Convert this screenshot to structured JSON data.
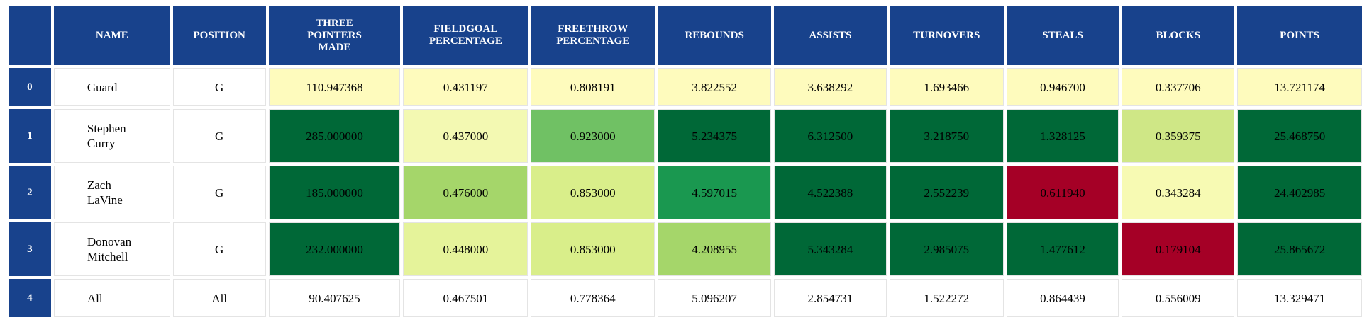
{
  "table": {
    "headers": [
      "",
      "NAME",
      "POSITION",
      "THREE POINTERS MADE",
      "FIELDGOAL PERCENTAGE",
      "FREETHROW PERCENTAGE",
      "REBOUNDS",
      "ASSISTS",
      "TURNOVERS",
      "STEALS",
      "BLOCKS",
      "POINTS"
    ],
    "rows": [
      {
        "index": "0",
        "cells": [
          "Guard",
          "G",
          "110.947368",
          "0.431197",
          "0.808191",
          "3.822552",
          "3.638292",
          "1.693466",
          "0.946700",
          "0.337706",
          "13.721174"
        ],
        "colors": [
          "#ffffff",
          "#ffffff",
          "#fefbbd",
          "#fefbbd",
          "#fefbbd",
          "#fefbbd",
          "#fefbbd",
          "#fefbbd",
          "#fefbbd",
          "#fefbbd",
          "#fefbbd"
        ]
      },
      {
        "index": "1",
        "cells": [
          "Stephen Curry",
          "G",
          "285.000000",
          "0.437000",
          "0.923000",
          "5.234375",
          "6.312500",
          "3.218750",
          "1.328125",
          "0.359375",
          "25.468750"
        ],
        "colors": [
          "#ffffff",
          "#ffffff",
          "#006837",
          "#f3f9b2",
          "#70c164",
          "#006837",
          "#006837",
          "#006837",
          "#006837",
          "#cfe786",
          "#006837"
        ]
      },
      {
        "index": "2",
        "cells": [
          "Zach LaVine",
          "G",
          "185.000000",
          "0.476000",
          "0.853000",
          "4.597015",
          "4.522388",
          "2.552239",
          "0.611940",
          "0.343284",
          "24.402985"
        ],
        "colors": [
          "#ffffff",
          "#ffffff",
          "#006837",
          "#a5d66a",
          "#d9ee8a",
          "#1a9850",
          "#006837",
          "#006837",
          "#a50026",
          "#f7fab3",
          "#006837"
        ]
      },
      {
        "index": "3",
        "cells": [
          "Donovan Mitchell",
          "G",
          "232.000000",
          "0.448000",
          "0.853000",
          "4.208955",
          "5.343284",
          "2.985075",
          "1.477612",
          "0.179104",
          "25.865672"
        ],
        "colors": [
          "#ffffff",
          "#ffffff",
          "#006837",
          "#e5f39a",
          "#d9ee8a",
          "#a5d66a",
          "#006837",
          "#006837",
          "#006837",
          "#a50026",
          "#006837"
        ]
      },
      {
        "index": "4",
        "cells": [
          "All",
          "All",
          "90.407625",
          "0.467501",
          "0.778364",
          "5.096207",
          "2.854731",
          "1.522272",
          "0.864439",
          "0.556009",
          "13.329471"
        ],
        "colors": [
          "#ffffff",
          "#ffffff",
          "#ffffff",
          "#ffffff",
          "#ffffff",
          "#ffffff",
          "#ffffff",
          "#ffffff",
          "#ffffff",
          "#ffffff",
          "#ffffff"
        ]
      }
    ]
  },
  "colors": {
    "header_bg": "#18428c",
    "header_text": "#ffffff"
  }
}
